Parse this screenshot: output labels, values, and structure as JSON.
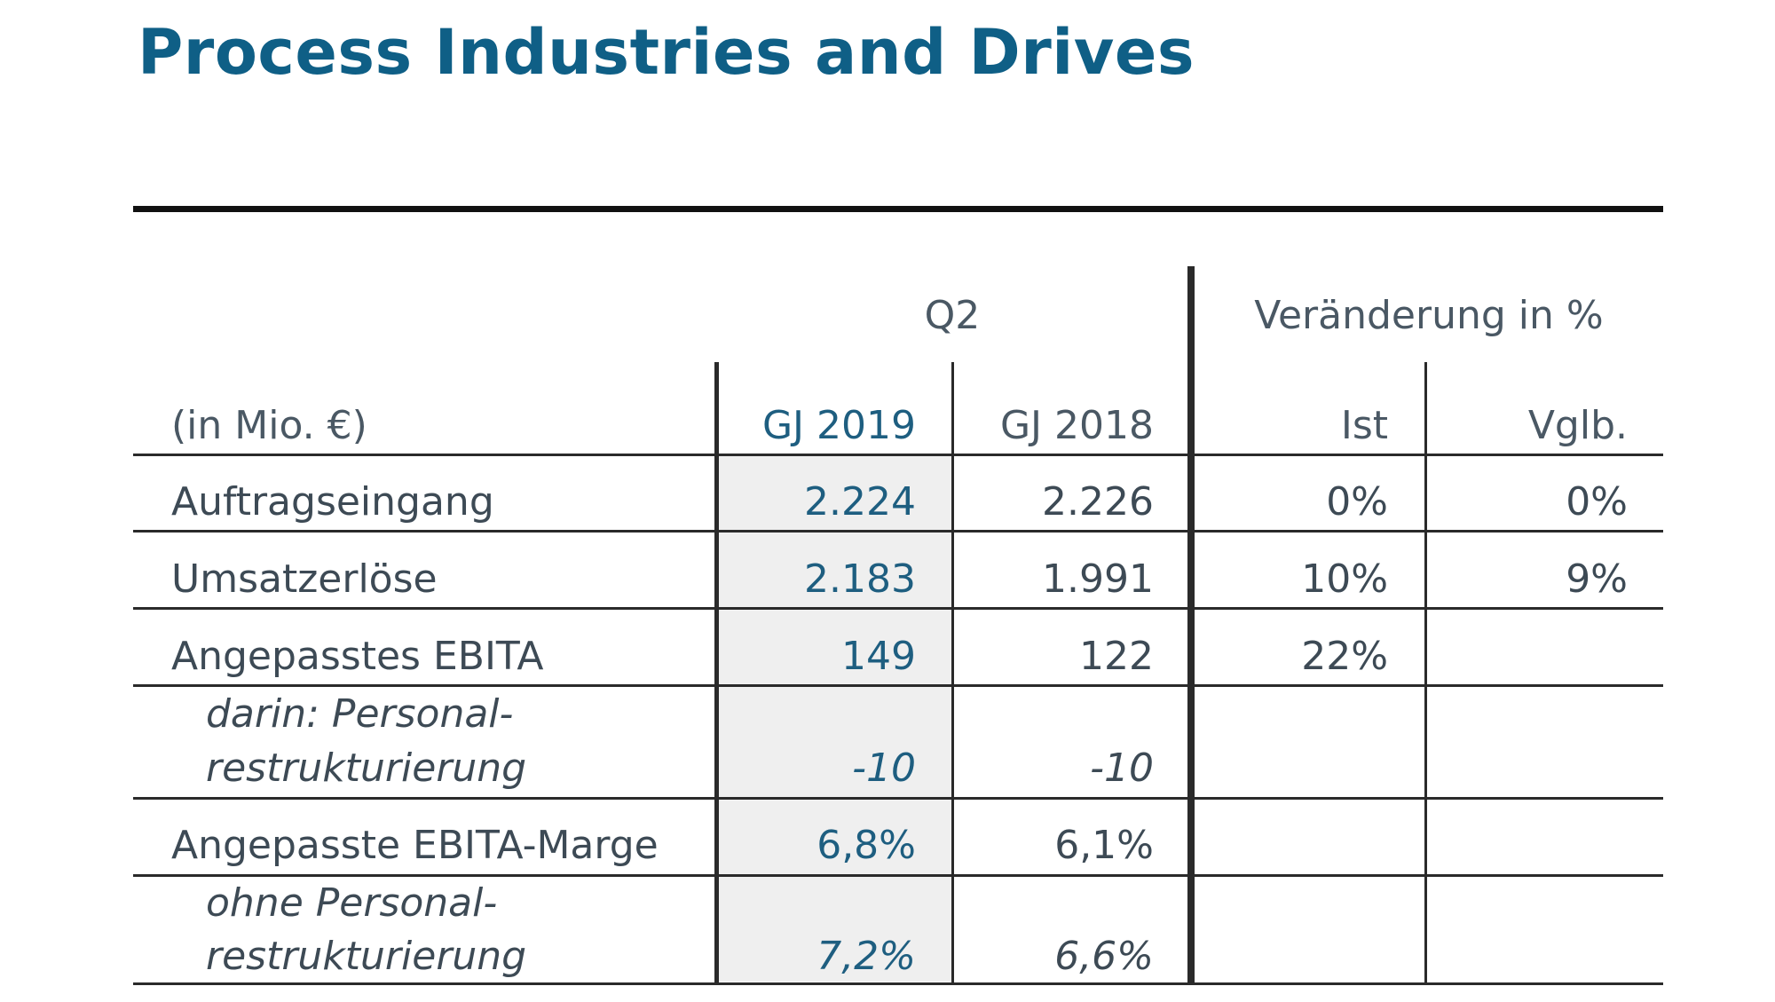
{
  "title": "Process Industries and Drives",
  "table": {
    "unit_label": "(in Mio. €)",
    "group_headers": {
      "quarter": "Q2",
      "change": "Veränderung in %"
    },
    "column_headers": {
      "fy2019": "GJ 2019",
      "fy2018": "GJ 2018",
      "actual": "Ist",
      "comparable": "Vglb."
    },
    "rows": [
      {
        "label": "Auftragseingang",
        "fy2019": "2.224",
        "fy2018": "2.226",
        "actual": "0%",
        "comparable": "0%"
      },
      {
        "label": "Umsatzerlöse",
        "fy2019": "2.183",
        "fy2018": "1.991",
        "actual": "10%",
        "comparable": "9%"
      },
      {
        "label": "Angepasstes EBITA",
        "fy2019": "149",
        "fy2018": "122",
        "actual": "22%",
        "comparable": ""
      },
      {
        "label_line1": "darin: Personal-",
        "label_line2": "restrukturierung",
        "fy2019": "-10",
        "fy2018": "-10",
        "actual": "",
        "comparable": ""
      },
      {
        "label": "Angepasste EBITA-Marge",
        "fy2019": "6,8%",
        "fy2018": "6,1%",
        "actual": "",
        "comparable": ""
      },
      {
        "label_line1": "ohne Personal-",
        "label_line2": "restrukturierung",
        "fy2019": "7,2%",
        "fy2018": "6,6%",
        "actual": "",
        "comparable": ""
      }
    ]
  },
  "colors": {
    "title": "#0f5f86",
    "fy2019_values": "#1e5e80",
    "text": "#3d4a55",
    "shade": "#efefef"
  }
}
